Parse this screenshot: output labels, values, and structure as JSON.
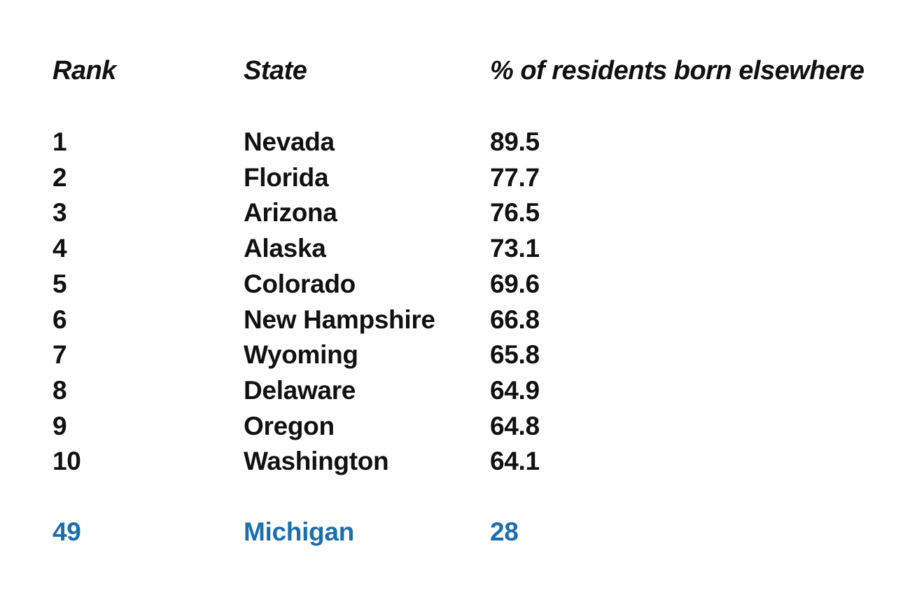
{
  "chart_data": {
    "type": "table",
    "columns": [
      "Rank",
      "State",
      "% of residents born elsewhere"
    ],
    "rows": [
      {
        "rank": "1",
        "state": "Nevada",
        "pct": "89.5"
      },
      {
        "rank": "2",
        "state": "Florida",
        "pct": "77.7"
      },
      {
        "rank": "3",
        "state": "Arizona",
        "pct": "76.5"
      },
      {
        "rank": "4",
        "state": "Alaska",
        "pct": "73.1"
      },
      {
        "rank": "5",
        "state": "Colorado",
        "pct": "69.6"
      },
      {
        "rank": "6",
        "state": "New Hampshire",
        "pct": "66.8"
      },
      {
        "rank": "7",
        "state": "Wyoming",
        "pct": "65.8"
      },
      {
        "rank": "8",
        "state": "Delaware",
        "pct": "64.9"
      },
      {
        "rank": "9",
        "state": "Oregon",
        "pct": "64.8"
      },
      {
        "rank": "10",
        "state": "Washington",
        "pct": "64.1"
      }
    ],
    "highlight_row": {
      "rank": "49",
      "state": "Michigan",
      "pct": "28"
    }
  },
  "colors": {
    "text": "#111111",
    "highlight": "#1b6fae",
    "background": "#ffffff"
  }
}
